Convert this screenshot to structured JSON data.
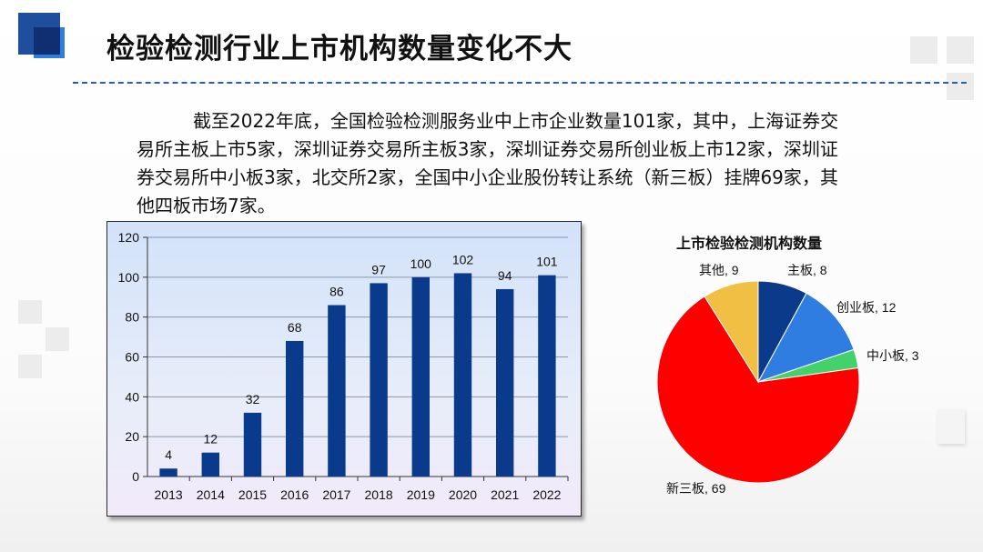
{
  "header": {
    "title": "检验检测行业上市机构数量变化不大"
  },
  "intro": {
    "paragraph": "截至2022年底，全国检验检测服务业中上市企业数量101家，其中，上海证券交易所主板上市5家，深圳证券交易所主板3家，深圳证券交易所创业板上市12家，深圳证券交易所中小板3家，北交所2家，全国中小企业股份转让系统（新三板）挂牌69家，其他四板市场7家。"
  },
  "colors": {
    "bar": "#0a3a8c",
    "title_rule": "#2b5ea8",
    "pie": [
      "#0b3a8b",
      "#2f7de1",
      "#43d16a",
      "#ff0000",
      "#f2bf45"
    ]
  },
  "chart_data": [
    {
      "type": "bar",
      "title": "",
      "xlabel": "",
      "ylabel": "",
      "categories": [
        "2013",
        "2014",
        "2015",
        "2016",
        "2017",
        "2018",
        "2019",
        "2020",
        "2021",
        "2022"
      ],
      "values": [
        4,
        12,
        32,
        68,
        86,
        97,
        100,
        102,
        94,
        101
      ],
      "ylim": [
        0,
        120
      ],
      "yticks": [
        0,
        20,
        40,
        60,
        80,
        100,
        120
      ],
      "grid": true,
      "data_labels": true
    },
    {
      "type": "pie",
      "title": "上市检验检测机构数量",
      "slices": [
        {
          "label": "主板",
          "value": 8
        },
        {
          "label": "创业板",
          "value": 12
        },
        {
          "label": "中小板",
          "value": 3
        },
        {
          "label": "新三板",
          "value": 69
        },
        {
          "label": "其他",
          "value": 9
        }
      ]
    }
  ]
}
